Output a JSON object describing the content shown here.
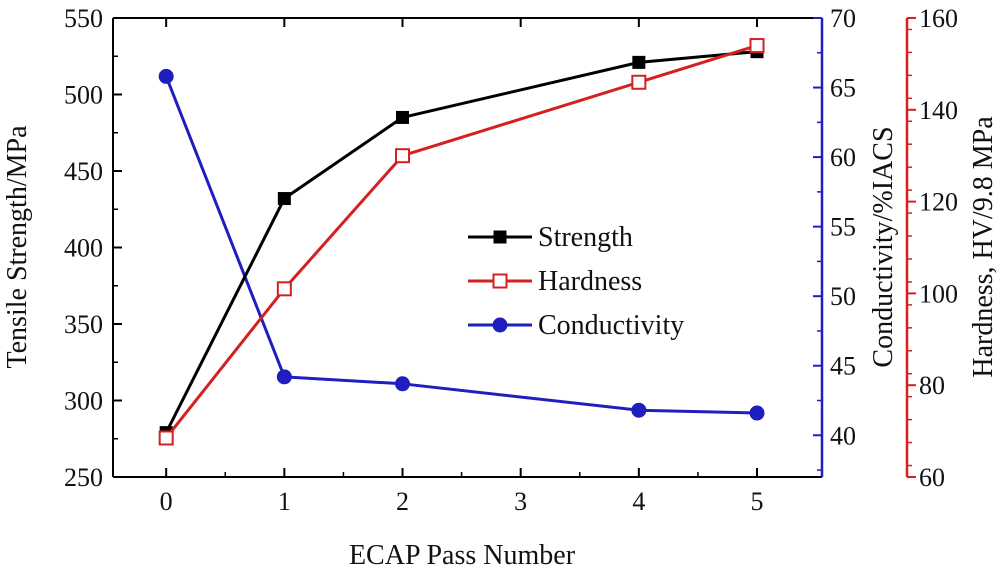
{
  "chart_data": {
    "type": "line",
    "x": [
      0,
      1,
      2,
      4,
      5
    ],
    "xlabel": "ECAP Pass Number",
    "xticks": [
      "0",
      "1",
      "2",
      "3",
      "4",
      "5"
    ],
    "xlim": [
      -0.45,
      5.55
    ],
    "grid": false,
    "legend_position": "center-right",
    "axes": {
      "left": {
        "label": "Tensile Strength/MPa",
        "range": [
          250,
          550
        ],
        "ticks": [
          "250",
          "300",
          "350",
          "400",
          "450",
          "500",
          "550"
        ],
        "color": "#000000"
      },
      "right1": {
        "label": "Conductivity/%IACS",
        "range": [
          37,
          70
        ],
        "ticks": [
          "40",
          "45",
          "50",
          "55",
          "60",
          "65",
          "70"
        ],
        "color": "#1f1fbf"
      },
      "right2": {
        "label": "Hardness, HV/9.8 MPa",
        "range": [
          60,
          160
        ],
        "ticks": [
          "60",
          "80",
          "100",
          "120",
          "140",
          "160"
        ],
        "color": "#d42020"
      }
    },
    "series": [
      {
        "name": "Strength",
        "axis": "left",
        "color": "#000000",
        "marker": "square-filled",
        "values": [
          279,
          432,
          485,
          521,
          528
        ]
      },
      {
        "name": "Hardness",
        "axis": "right2",
        "color": "#d42020",
        "marker": "square-open",
        "values": [
          68.5,
          101,
          130,
          146,
          154
        ]
      },
      {
        "name": "Conductivity",
        "axis": "right1",
        "color": "#1f1fbf",
        "marker": "circle-filled",
        "values": [
          65.8,
          44.2,
          43.7,
          41.8,
          41.6
        ]
      }
    ]
  }
}
